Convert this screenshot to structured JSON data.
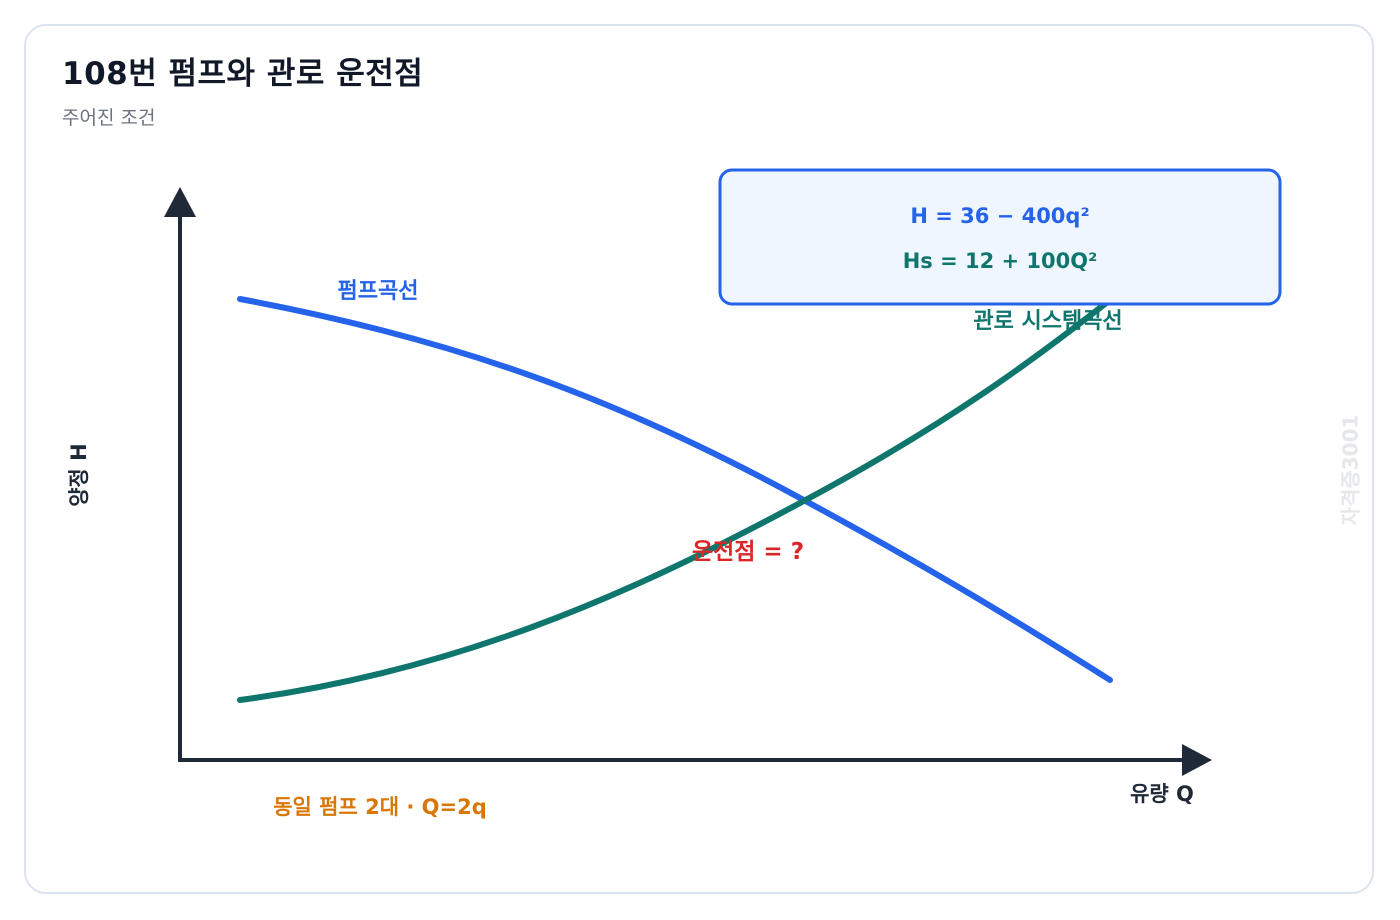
{
  "title": "108번 펌프와 관로 운전점",
  "subtitle": "주어진 조건",
  "axes": {
    "y_label": "양정 H",
    "x_label": "유량 Q"
  },
  "curves": {
    "pump_label": "펌프곡선",
    "system_label": "관로 시스템곡선"
  },
  "equations": {
    "pump": "H = 36 − 400q²",
    "system": "Hs = 12 + 100Q²"
  },
  "operating_point": "운전점 = ?",
  "condition": "동일 펌프 2대 · Q=2q",
  "watermark": "자격증3001",
  "colors": {
    "pump": "#2563eb",
    "system": "#0f766e",
    "axis": "#1f2937",
    "question": "#dc2626",
    "condition": "#d97706",
    "box_fill": "#eff6ff",
    "box_border": "#2563eb",
    "watermark": "#e5e7eb"
  }
}
